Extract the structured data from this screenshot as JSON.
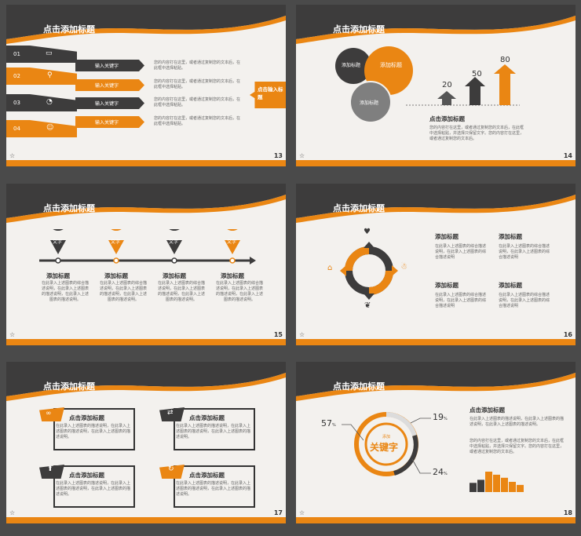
{
  "s13": {
    "title": "点击添加标题",
    "num": "13",
    "rows": [
      {
        "n": "01",
        "k": "输入关键字"
      },
      {
        "n": "02",
        "k": "输入关键字"
      },
      {
        "n": "03",
        "k": "输入关键字"
      },
      {
        "n": "04",
        "k": "输入关键字"
      }
    ],
    "desc": "您的内容打在这里，或者通过复制您的文本后，在此框中选择粘贴。",
    "callout": "点击输入标题"
  },
  "s14": {
    "title": "点击添加标题",
    "num": "14",
    "c1": "添加标题",
    "c2": "添加标题",
    "c3": "添加标题",
    "v1": "20",
    "v2": "50",
    "v3": "80",
    "sub": "点击添加标题",
    "body": "您的内容打在这里，或者通过复制您的文本后，在此框中选择粘贴，并选择只保留文字。您的内容打在这里，或者通过复制您的文本后。"
  },
  "s15": {
    "title": "点击添加标题",
    "num": "15",
    "pins": [
      "文字",
      "文字",
      "文字",
      "文字"
    ],
    "subs": [
      "添加标题",
      "添加标题",
      "添加标题",
      "添加标题"
    ],
    "body": "在此录入上述图表的综合描述说明，在此录入上述图表的描述说明，在此录入上述图表的描述说明。"
  },
  "s16": {
    "title": "点击添加标题",
    "num": "16",
    "subs": [
      "添加标题",
      "添加标题",
      "添加标题",
      "添加标题"
    ],
    "body": "在此录入上述图表的综合描述说明，在此录入上述图表的综合描述说明"
  },
  "s17": {
    "title": "点击添加标题",
    "num": "17",
    "subs": [
      "点击添加标题",
      "点击添加标题",
      "点击添加标题",
      "点击添加标题"
    ],
    "body": "在此录入上述图表的描述说明，在此录入上述图表的描述说明，在此录入上述图表的描述说明。"
  },
  "s18": {
    "title": "点击添加标题",
    "num": "18",
    "small": "添加",
    "key": "关键字",
    "p1": "57",
    "p2": "19",
    "p3": "24",
    "pct": "%",
    "sub": "点击添加标题",
    "body1": "在此录入上述图表的描述说明，在此录入上述图表的描述说明，在此录入上述图表的描述说明。",
    "body2": "您的内容打在这里，或者通过复制您的文本后，在此框中选择粘贴，并选择只保留文字。您的内容打在这里，或者通过复制您的文本后。",
    "bars": [
      0.45,
      0.6,
      1.0,
      0.85,
      0.7,
      0.5,
      0.35
    ]
  },
  "colors": {
    "orange": "#ea8613",
    "dark": "#3d3c3c",
    "gray": "#7f7f7f"
  },
  "footer_icon": "star-outline-icon"
}
